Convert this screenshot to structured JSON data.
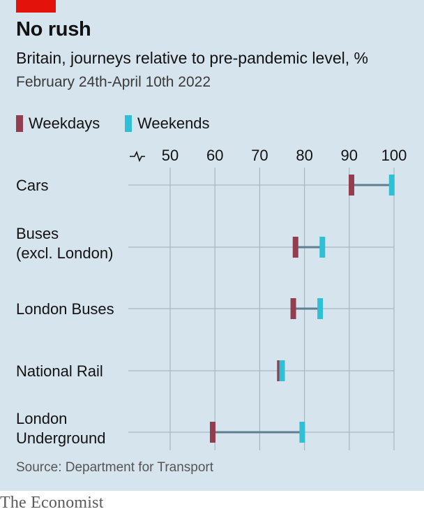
{
  "header": {
    "title": "No rush",
    "subtitle": "Britain, journeys relative to pre-pandemic level, %",
    "date_range": "February 24th-April 10th 2022"
  },
  "legend": [
    {
      "label": "Weekdays",
      "color": "#943d4f"
    },
    {
      "label": "Weekends",
      "color": "#2fc0d6"
    }
  ],
  "footer": {
    "source": "Source: Department for Transport",
    "brand": "The Economist"
  },
  "colors": {
    "background": "#d6e4ee",
    "accent_red": "#e3120b",
    "connector": "#5f7f90",
    "gridline": "#a9b7c0"
  },
  "chart_data": {
    "type": "dumbbell",
    "title": "No rush",
    "subtitle": "Britain, journeys relative to pre-pandemic level, %",
    "xlim": [
      45,
      100
    ],
    "axis_break": true,
    "ticks": [
      50,
      60,
      70,
      80,
      90,
      100
    ],
    "categories": [
      [
        "Cars"
      ],
      [
        "Buses",
        "(excl. London)"
      ],
      [
        "London Buses"
      ],
      [
        "National Rail"
      ],
      [
        "London",
        "Underground"
      ]
    ],
    "series": [
      {
        "name": "Weekdays",
        "values": [
          90.5,
          78,
          77.5,
          74.5,
          59.5
        ]
      },
      {
        "name": "Weekends",
        "values": [
          99.5,
          84,
          83.5,
          75,
          79.5
        ]
      }
    ],
    "legend_position": "top-left",
    "grid": "vertical"
  }
}
